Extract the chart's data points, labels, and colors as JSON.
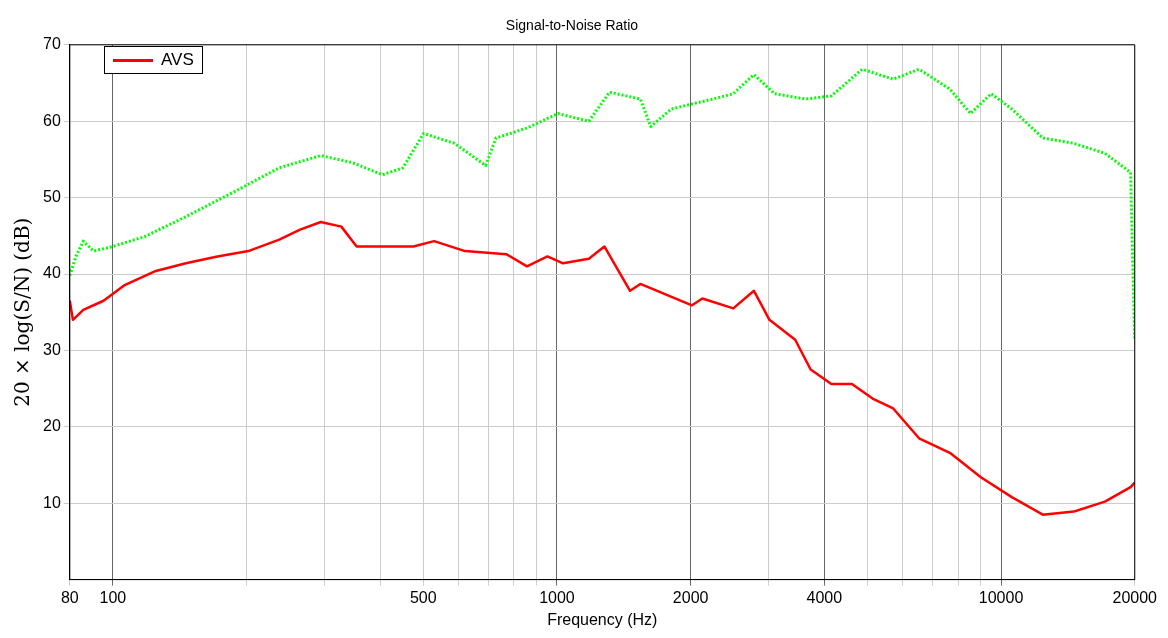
{
  "chart_data": {
    "type": "line",
    "title": "Signal-to-Noise Ratio",
    "xlabel": "Frequency (Hz)",
    "ylabel": "20 × log(S/N) (dB)",
    "log": "x",
    "xlim": [
      80,
      20000
    ],
    "ylim": [
      0,
      70
    ],
    "xticks": [
      80,
      100,
      {
        "value": 200,
        "label": null
      },
      {
        "value": 300,
        "label": null
      },
      {
        "value": 400,
        "label": null
      },
      500,
      {
        "value": 600,
        "label": null
      },
      {
        "value": 700,
        "label": null
      },
      {
        "value": 800,
        "label": null
      },
      {
        "value": 900,
        "label": null
      },
      1000,
      2000,
      {
        "value": 3000,
        "label": null
      },
      4000,
      {
        "value": 5000,
        "label": null
      },
      {
        "value": 6000,
        "label": null
      },
      {
        "value": 7000,
        "label": null
      },
      {
        "value": 8000,
        "label": null
      },
      {
        "value": 9000,
        "label": null
      },
      10000,
      20000
    ],
    "yticks": [
      10,
      20,
      30,
      40,
      50,
      60,
      70
    ],
    "grid": true,
    "legend": "top left",
    "marker": "none",
    "series": [
      {
        "name": "AVS",
        "color": "#ff0000",
        "line_style": "solid",
        "x": [
          80,
          81.3,
          85.8,
          95.3,
          106,
          125,
          146,
          172,
          202,
          237,
          264,
          294,
          327,
          354,
          405,
          475,
          529,
          621,
          769,
          856,
          952,
          1032,
          1180,
          1279,
          1461,
          1541,
          2014,
          2126,
          2495,
          2777,
          3009,
          3439,
          3726,
          4148,
          4616,
          5138,
          5717,
          6537,
          7669,
          9005,
          10573,
          12418,
          14584,
          17130,
          19570,
          20000
        ],
        "values": [
          36.5,
          34,
          35.3,
          36.5,
          38.5,
          40.4,
          41.4,
          42.3,
          43,
          44.5,
          45.8,
          46.8,
          46.2,
          43.6,
          43.6,
          43.6,
          44.3,
          43,
          42.6,
          41,
          42.3,
          41.4,
          42,
          43.6,
          37.8,
          38.7,
          35.9,
          36.8,
          35.5,
          37.8,
          34,
          31.4,
          27.5,
          25.6,
          25.6,
          23.7,
          22.4,
          18.5,
          16.6,
          13.4,
          10.8,
          8.5,
          8.9,
          10.2,
          12.1,
          12.7
        ]
      },
      {
        "color": "#00ff00",
        "line_style": "dotted",
        "x": [
          80,
          82.6,
          85.8,
          90.5,
          100,
          118,
          146,
          191,
          237,
          294,
          345,
          405,
          450,
          501,
          588,
          691,
          729,
          856,
          1005,
          1180,
          1313,
          1541,
          1626,
          1810,
          2243,
          2495,
          2777,
          3090,
          3628,
          4148,
          4869,
          5717,
          6537,
          7669,
          8535,
          9501,
          10573,
          12418,
          14584,
          17130,
          19570,
          20000
        ],
        "values": [
          39.8,
          42.3,
          44.3,
          43,
          43.6,
          44.9,
          47.5,
          51,
          53.9,
          55.5,
          54.6,
          53,
          53.9,
          58.4,
          57.1,
          54.2,
          57.8,
          59.1,
          61,
          60,
          63.8,
          62.9,
          59.3,
          61.6,
          62.9,
          63.6,
          66.1,
          63.6,
          62.9,
          63.3,
          66.8,
          65.5,
          66.8,
          64.2,
          61,
          63.6,
          61.6,
          57.8,
          57.1,
          55.8,
          53.3,
          31.4
        ]
      }
    ]
  }
}
